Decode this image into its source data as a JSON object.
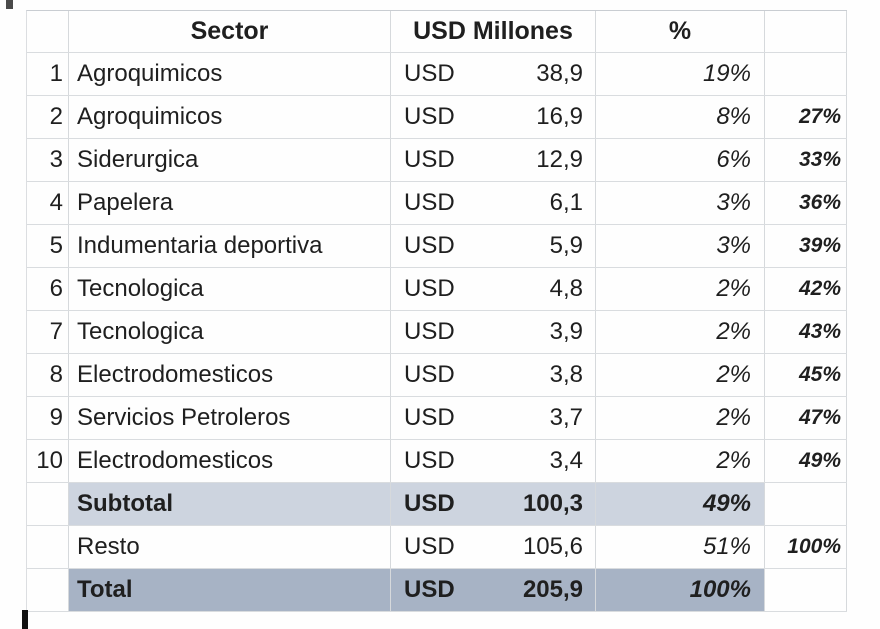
{
  "table": {
    "headers": {
      "sector": "Sector",
      "usd_millones": "USD Millones",
      "percent": "%",
      "cumulative": ""
    },
    "currency_label": "USD",
    "rows": [
      {
        "num": "1",
        "sector": "Agroquimicos",
        "amount": "38,9",
        "pct": "19%",
        "cum": "",
        "style": "normal"
      },
      {
        "num": "2",
        "sector": "Agroquimicos",
        "amount": "16,9",
        "pct": "8%",
        "cum": "27%",
        "style": "normal"
      },
      {
        "num": "3",
        "sector": "Siderurgica",
        "amount": "12,9",
        "pct": "6%",
        "cum": "33%",
        "style": "normal"
      },
      {
        "num": "4",
        "sector": "Papelera",
        "amount": "6,1",
        "pct": "3%",
        "cum": "36%",
        "style": "normal"
      },
      {
        "num": "5",
        "sector": "Indumentaria deportiva",
        "amount": "5,9",
        "pct": "3%",
        "cum": "39%",
        "style": "normal"
      },
      {
        "num": "6",
        "sector": "Tecnologica",
        "amount": "4,8",
        "pct": "2%",
        "cum": "42%",
        "style": "normal"
      },
      {
        "num": "7",
        "sector": "Tecnologica",
        "amount": "3,9",
        "pct": "2%",
        "cum": "43%",
        "style": "normal"
      },
      {
        "num": "8",
        "sector": "Electrodomesticos",
        "amount": "3,8",
        "pct": "2%",
        "cum": "45%",
        "style": "normal"
      },
      {
        "num": "9",
        "sector": "Servicios Petroleros",
        "amount": "3,7",
        "pct": "2%",
        "cum": "47%",
        "style": "normal"
      },
      {
        "num": "10",
        "sector": "Electrodomesticos",
        "amount": "3,4",
        "pct": "2%",
        "cum": "49%",
        "style": "normal"
      },
      {
        "num": "",
        "sector": "Subtotal",
        "amount": "100,3",
        "pct": "49%",
        "cum": "",
        "style": "subtotal"
      },
      {
        "num": "",
        "sector": "Resto",
        "amount": "105,6",
        "pct": "51%",
        "cum": "100%",
        "style": "normal"
      },
      {
        "num": "",
        "sector": "Total",
        "amount": "205,9",
        "pct": "100%",
        "cum": "",
        "style": "total"
      }
    ],
    "colors": {
      "subtotal_bg": "#cdd4df",
      "total_bg": "#a7b3c5",
      "grid_line": "#d9dcdf",
      "text": "#1f1f1f"
    }
  }
}
